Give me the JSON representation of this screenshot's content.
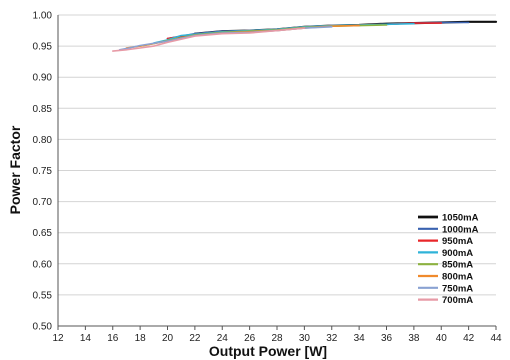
{
  "chart_data": {
    "type": "line",
    "title": "",
    "xlabel": "Output Power [W]",
    "ylabel": "Power Factor",
    "xlim": [
      12,
      44
    ],
    "ylim": [
      0.5,
      1.0
    ],
    "xticks": [
      "12",
      "14",
      "16",
      "18",
      "20",
      "22",
      "24",
      "26",
      "28",
      "30",
      "32",
      "34",
      "36",
      "38",
      "40",
      "42",
      "44"
    ],
    "yticks": [
      "0.50",
      "0.55",
      "0.60",
      "0.65",
      "0.70",
      "0.75",
      "0.80",
      "0.85",
      "0.90",
      "0.95",
      "1.00"
    ],
    "grid": "horizontal",
    "legend_position": "bottom-right",
    "series": [
      {
        "name": "1050mA",
        "color": "#111111",
        "width": 2.2,
        "x": [
          22,
          24,
          26,
          28,
          30,
          32,
          34,
          36,
          38,
          40,
          42,
          44
        ],
        "y": [
          0.97,
          0.974,
          0.975,
          0.977,
          0.981,
          0.983,
          0.984,
          0.986,
          0.987,
          0.988,
          0.989,
          0.989
        ]
      },
      {
        "name": "1000mA",
        "color": "#3a62b0",
        "width": 1.6,
        "x": [
          20,
          22,
          24,
          26,
          28,
          30,
          32,
          34,
          36,
          38,
          40,
          42
        ],
        "y": [
          0.962,
          0.97,
          0.974,
          0.975,
          0.977,
          0.981,
          0.983,
          0.984,
          0.985,
          0.987,
          0.988,
          0.988
        ]
      },
      {
        "name": "950mA",
        "color": "#e8262a",
        "width": 1.6,
        "x": [
          20,
          22,
          24,
          26,
          28,
          30,
          32,
          34,
          36,
          38,
          40
        ],
        "y": [
          0.962,
          0.969,
          0.973,
          0.975,
          0.977,
          0.981,
          0.983,
          0.984,
          0.985,
          0.987,
          0.987
        ]
      },
      {
        "name": "900mA",
        "color": "#2fb3d8",
        "width": 1.6,
        "x": [
          19,
          20,
          21,
          22,
          24,
          26,
          28,
          30,
          32,
          34,
          36,
          38
        ],
        "y": [
          0.955,
          0.96,
          0.967,
          0.969,
          0.973,
          0.975,
          0.977,
          0.981,
          0.983,
          0.984,
          0.985,
          0.986
        ]
      },
      {
        "name": "850mA",
        "color": "#8db240",
        "width": 1.6,
        "x": [
          18,
          19,
          20,
          22,
          24,
          26,
          28,
          30,
          32,
          34,
          36
        ],
        "y": [
          0.95,
          0.954,
          0.959,
          0.968,
          0.972,
          0.974,
          0.976,
          0.98,
          0.982,
          0.983,
          0.984
        ]
      },
      {
        "name": "800mA",
        "color": "#f08a2c",
        "width": 1.6,
        "x": [
          17,
          18,
          20,
          22,
          24,
          26,
          28,
          30,
          32,
          34
        ],
        "y": [
          0.947,
          0.95,
          0.958,
          0.967,
          0.971,
          0.973,
          0.975,
          0.979,
          0.982,
          0.983
        ]
      },
      {
        "name": "750mA",
        "color": "#8aa2d2",
        "width": 1.6,
        "x": [
          16.5,
          17,
          18,
          20,
          22,
          24,
          26,
          28,
          30,
          32
        ],
        "y": [
          0.944,
          0.946,
          0.951,
          0.958,
          0.967,
          0.971,
          0.972,
          0.975,
          0.979,
          0.981
        ]
      },
      {
        "name": "700mA",
        "color": "#e79aa6",
        "width": 1.6,
        "x": [
          16,
          17,
          18,
          19,
          20,
          22,
          24,
          26,
          28,
          30
        ],
        "y": [
          0.942,
          0.944,
          0.947,
          0.95,
          0.956,
          0.966,
          0.97,
          0.971,
          0.975,
          0.979
        ]
      }
    ]
  }
}
